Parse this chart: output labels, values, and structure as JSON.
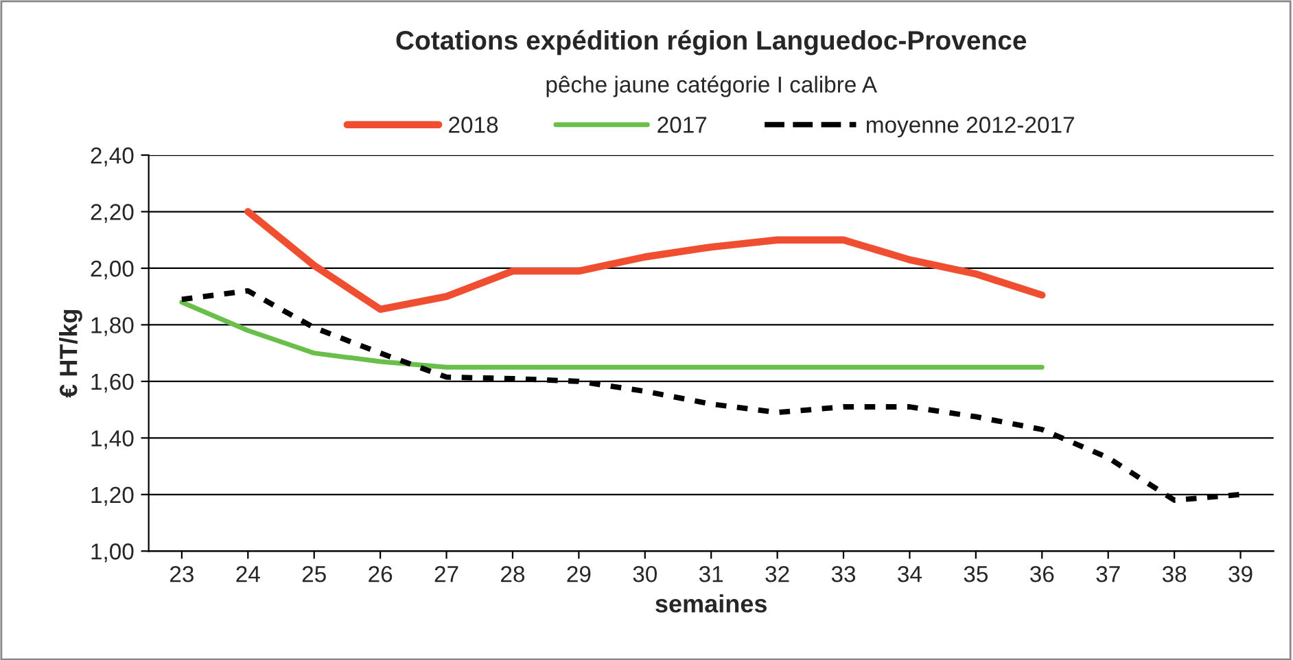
{
  "chart_data": {
    "type": "line",
    "title": "Cotations expédition région Languedoc-Provence",
    "subtitle": "pêche jaune catégorie I calibre A",
    "xlabel": "semaines",
    "ylabel": "€ HT/kg",
    "categories": [
      "23",
      "24",
      "25",
      "26",
      "27",
      "28",
      "29",
      "30",
      "31",
      "32",
      "33",
      "34",
      "35",
      "36",
      "37",
      "38",
      "39"
    ],
    "series": [
      {
        "name": "2018",
        "color": "#f04e30",
        "line_style": "solid",
        "values": [
          null,
          2.2,
          2.01,
          1.855,
          1.9,
          1.99,
          1.99,
          2.04,
          2.075,
          2.1,
          2.1,
          2.03,
          1.98,
          1.905,
          null,
          null,
          null
        ]
      },
      {
        "name": "2017",
        "color": "#6abf4b",
        "line_style": "solid",
        "values": [
          1.88,
          1.78,
          1.7,
          1.67,
          1.65,
          1.65,
          1.65,
          1.65,
          1.65,
          1.65,
          1.65,
          1.65,
          1.65,
          1.65,
          null,
          null,
          null
        ]
      },
      {
        "name": "moyenne 2012-2017",
        "color": "#000000",
        "line_style": "dashed",
        "values": [
          1.89,
          1.92,
          1.79,
          1.7,
          1.615,
          1.61,
          1.6,
          1.565,
          1.52,
          1.49,
          1.51,
          1.51,
          1.475,
          1.43,
          1.33,
          1.18,
          1.2
        ]
      }
    ],
    "ylim": [
      1.0,
      2.4
    ],
    "yticks": [
      {
        "value": 1.0,
        "label": "1,00"
      },
      {
        "value": 1.2,
        "label": "1,20"
      },
      {
        "value": 1.4,
        "label": "1,40"
      },
      {
        "value": 1.6,
        "label": "1,60"
      },
      {
        "value": 1.8,
        "label": "1,80"
      },
      {
        "value": 2.0,
        "label": "2,00"
      },
      {
        "value": 2.2,
        "label": "2,20"
      },
      {
        "value": 2.4,
        "label": "2,40"
      }
    ],
    "grid": "y",
    "legend": "top",
    "marker": "none"
  }
}
